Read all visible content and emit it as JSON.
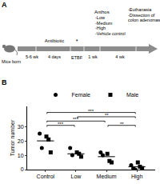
{
  "panel_a": {
    "label": "A",
    "mice_born": "Mice born",
    "age": "5-6 wk",
    "antibiotic": "Antibiotic",
    "antibiotic_duration": "4 days",
    "infection_mark": "*",
    "infection": "ETBF",
    "interval_1": "1 wk",
    "treatment": {
      "title": "Anthos",
      "groups": [
        "-Low",
        "-Medium",
        "-High",
        "-Vehicle control"
      ]
    },
    "interval_2": "4 wk",
    "endpoint": [
      "-Euthanasia",
      "-Dissection of",
      "colon adenomas"
    ]
  },
  "chart_data": {
    "label": "B",
    "type": "scatter",
    "y_label": "Tumor number",
    "categories": [
      "Control",
      "Low",
      "Medium",
      "High"
    ],
    "ylim": [
      0,
      44
    ],
    "yticks": [
      0,
      10,
      20,
      30
    ],
    "grid": false,
    "legend": "top",
    "series": [
      {
        "name": "Female",
        "color": "#000000",
        "marker": "circle",
        "x": [
          "Control",
          "Control",
          "Low",
          "Low",
          "Medium",
          "Medium",
          "High",
          "High",
          "High"
        ],
        "values": [
          25,
          15,
          15,
          10,
          12,
          10,
          3,
          1,
          0
        ]
      },
      {
        "name": "Male",
        "color": "#000000",
        "marker": "square",
        "x": [
          "Control",
          "Control",
          "Control",
          "Low",
          "Low",
          "Low",
          "Medium",
          "Medium",
          "Medium",
          "High",
          "High",
          "High"
        ],
        "values": [
          23,
          21,
          12,
          12,
          11,
          9,
          11,
          6,
          5,
          5,
          2,
          1
        ]
      }
    ],
    "means": [
      20,
      11,
      9,
      2
    ],
    "comparisons": [
      {
        "from": "Control",
        "to": "Low",
        "label": "***"
      },
      {
        "from": "Control",
        "to": "Medium",
        "label": "***"
      },
      {
        "from": "Control",
        "to": "High",
        "label": "***"
      },
      {
        "from": "Low",
        "to": "High",
        "label": "**"
      },
      {
        "from": "Medium",
        "to": "High",
        "label": "**"
      }
    ]
  }
}
